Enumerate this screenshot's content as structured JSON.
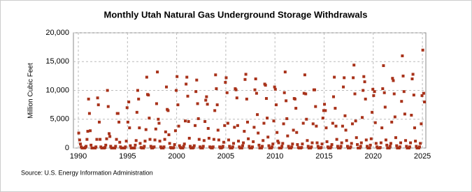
{
  "chart_data": {
    "type": "scatter",
    "title": "Monthly Utah Natural  Gas Underground Storage Withdrawals",
    "y_label": "Million Cubic Feet",
    "source": "Source: U.S. Energy Information Administration",
    "color": "#a8321a",
    "grid": true,
    "xlim": [
      1989.5,
      2025.35
    ],
    "xticks": [
      1990,
      1995,
      2000,
      2005,
      2010,
      2015,
      2020,
      2025
    ],
    "ylim": [
      0,
      20000
    ],
    "yticks": [
      0,
      {
        "value": 5000,
        "label": "5,000"
      },
      {
        "value": 10000,
        "label": "10,000"
      },
      {
        "value": 15000,
        "label": "15,000"
      },
      {
        "value": 20000,
        "label": "20,000"
      }
    ],
    "x": [
      1990.04,
      1990.13,
      1990.21,
      1990.29,
      1990.38,
      1990.46,
      1990.54,
      1990.63,
      1990.71,
      1990.79,
      1990.88,
      1990.96,
      1991.04,
      1991.13,
      1991.21,
      1991.29,
      1991.38,
      1991.46,
      1991.54,
      1991.63,
      1991.71,
      1991.79,
      1991.88,
      1991.96,
      1992.04,
      1992.13,
      1992.21,
      1992.29,
      1992.38,
      1992.46,
      1992.54,
      1992.63,
      1992.71,
      1992.79,
      1992.88,
      1992.96,
      1993.04,
      1993.13,
      1993.21,
      1993.29,
      1993.38,
      1993.46,
      1993.54,
      1993.63,
      1993.71,
      1993.79,
      1993.88,
      1993.96,
      1994.04,
      1994.13,
      1994.21,
      1994.29,
      1994.38,
      1994.46,
      1994.54,
      1994.63,
      1994.71,
      1994.79,
      1994.88,
      1994.96,
      1995.04,
      1995.13,
      1995.21,
      1995.29,
      1995.38,
      1995.46,
      1995.54,
      1995.63,
      1995.71,
      1995.79,
      1995.88,
      1995.96,
      1996.04,
      1996.13,
      1996.21,
      1996.29,
      1996.38,
      1996.46,
      1996.54,
      1996.63,
      1996.71,
      1996.79,
      1996.88,
      1996.96,
      1997.04,
      1997.13,
      1997.21,
      1997.29,
      1997.38,
      1997.46,
      1997.54,
      1997.63,
      1997.71,
      1997.79,
      1997.88,
      1997.96,
      1998.04,
      1998.13,
      1998.21,
      1998.29,
      1998.38,
      1998.46,
      1998.54,
      1998.63,
      1998.71,
      1998.79,
      1998.88,
      1998.96,
      1999.04,
      1999.13,
      1999.21,
      1999.29,
      1999.38,
      1999.46,
      1999.54,
      1999.63,
      1999.71,
      1999.79,
      1999.88,
      1999.96,
      2000.04,
      2000.13,
      2000.21,
      2000.29,
      2000.38,
      2000.46,
      2000.54,
      2000.63,
      2000.71,
      2000.79,
      2000.88,
      2000.96,
      2001.04,
      2001.13,
      2001.21,
      2001.29,
      2001.38,
      2001.46,
      2001.54,
      2001.63,
      2001.71,
      2001.79,
      2001.88,
      2001.96,
      2002.04,
      2002.13,
      2002.21,
      2002.29,
      2002.38,
      2002.46,
      2002.54,
      2002.63,
      2002.71,
      2002.79,
      2002.88,
      2002.96,
      2003.04,
      2003.13,
      2003.21,
      2003.29,
      2003.38,
      2003.46,
      2003.54,
      2003.63,
      2003.71,
      2003.79,
      2003.88,
      2003.96,
      2004.04,
      2004.13,
      2004.21,
      2004.29,
      2004.38,
      2004.46,
      2004.54,
      2004.63,
      2004.71,
      2004.79,
      2004.88,
      2004.96,
      2005.04,
      2005.13,
      2005.21,
      2005.29,
      2005.38,
      2005.46,
      2005.54,
      2005.63,
      2005.71,
      2005.79,
      2005.88,
      2005.96,
      2006.04,
      2006.13,
      2006.21,
      2006.29,
      2006.38,
      2006.46,
      2006.54,
      2006.63,
      2006.71,
      2006.79,
      2006.88,
      2006.96,
      2007.04,
      2007.13,
      2007.21,
      2007.29,
      2007.38,
      2007.46,
      2007.54,
      2007.63,
      2007.71,
      2007.79,
      2007.88,
      2007.96,
      2008.04,
      2008.13,
      2008.21,
      2008.29,
      2008.38,
      2008.46,
      2008.54,
      2008.63,
      2008.71,
      2008.79,
      2008.88,
      2008.96,
      2009.04,
      2009.13,
      2009.21,
      2009.29,
      2009.38,
      2009.46,
      2009.54,
      2009.63,
      2009.71,
      2009.79,
      2009.88,
      2009.96,
      2010.04,
      2010.13,
      2010.21,
      2010.29,
      2010.38,
      2010.46,
      2010.54,
      2010.63,
      2010.71,
      2010.79,
      2010.88,
      2010.96,
      2011.04,
      2011.13,
      2011.21,
      2011.29,
      2011.38,
      2011.46,
      2011.54,
      2011.63,
      2011.71,
      2011.79,
      2011.88,
      2011.96,
      2012.04,
      2012.13,
      2012.21,
      2012.29,
      2012.38,
      2012.46,
      2012.54,
      2012.63,
      2012.71,
      2012.79,
      2012.88,
      2012.96,
      2013.04,
      2013.13,
      2013.21,
      2013.29,
      2013.38,
      2013.46,
      2013.54,
      2013.63,
      2013.71,
      2013.79,
      2013.88,
      2013.96,
      2014.04,
      2014.13,
      2014.21,
      2014.29,
      2014.38,
      2014.46,
      2014.54,
      2014.63,
      2014.71,
      2014.79,
      2014.88,
      2014.96,
      2015.04,
      2015.13,
      2015.21,
      2015.29,
      2015.38,
      2015.46,
      2015.54,
      2015.63,
      2015.71,
      2015.79,
      2015.88,
      2015.96,
      2016.04,
      2016.13,
      2016.21,
      2016.29,
      2016.38,
      2016.46,
      2016.54,
      2016.63,
      2016.71,
      2016.79,
      2016.88,
      2016.96,
      2017.04,
      2017.13,
      2017.21,
      2017.29,
      2017.38,
      2017.46,
      2017.54,
      2017.63,
      2017.71,
      2017.79,
      2017.88,
      2017.96,
      2018.04,
      2018.13,
      2018.21,
      2018.29,
      2018.38,
      2018.46,
      2018.54,
      2018.63,
      2018.71,
      2018.79,
      2018.88,
      2018.96,
      2019.04,
      2019.13,
      2019.21,
      2019.29,
      2019.38,
      2019.46,
      2019.54,
      2019.63,
      2019.71,
      2019.79,
      2019.88,
      2019.96,
      2020.04,
      2020.13,
      2020.21,
      2020.29,
      2020.38,
      2020.46,
      2020.54,
      2020.63,
      2020.71,
      2020.79,
      2020.88,
      2020.96,
      2021.04,
      2021.13,
      2021.21,
      2021.29,
      2021.38,
      2021.46,
      2021.54,
      2021.63,
      2021.71,
      2021.79,
      2021.88,
      2021.96,
      2022.04,
      2022.13,
      2022.21,
      2022.29,
      2022.38,
      2022.46,
      2022.54,
      2022.63,
      2022.71,
      2022.79,
      2022.88,
      2022.96,
      2023.04,
      2023.13,
      2023.21,
      2023.29,
      2023.38,
      2023.46,
      2023.54,
      2023.63,
      2023.71,
      2023.79,
      2023.88,
      2023.96,
      2024.04,
      2024.13,
      2024.21,
      2024.29,
      2024.38,
      2024.46,
      2024.54,
      2024.63,
      2024.71,
      2024.79,
      2024.88,
      2024.96,
      2025.04,
      2025.13,
      2025.21
    ],
    "values": [
      2600,
      1400,
      700,
      200,
      0,
      0,
      0,
      0,
      100,
      300,
      1500,
      2900,
      8500,
      6000,
      3000,
      500,
      0,
      0,
      0,
      0,
      0,
      200,
      1500,
      8700,
      7500,
      4500,
      1500,
      200,
      0,
      0,
      0,
      0,
      100,
      500,
      1600,
      10000,
      7200,
      2500,
      2000,
      300,
      0,
      0,
      0,
      0,
      0,
      300,
      1500,
      6000,
      6000,
      4500,
      1000,
      200,
      0,
      0,
      0,
      0,
      0,
      200,
      1200,
      7000,
      4500,
      8000,
      3500,
      400,
      0,
      0,
      0,
      0,
      0,
      500,
      1300,
      6200,
      10000,
      8500,
      3500,
      800,
      100,
      0,
      0,
      0,
      300,
      1200,
      3200,
      12300,
      9300,
      9200,
      5200,
      1500,
      300,
      0,
      0,
      100,
      200,
      1400,
      3300,
      7700,
      13200,
      5000,
      4300,
      1200,
      200,
      0,
      0,
      0,
      200,
      1500,
      2800,
      10600,
      6700,
      6500,
      2300,
      800,
      100,
      0,
      0,
      0,
      100,
      600,
      3000,
      10000,
      12400,
      7500,
      3800,
      400,
      100,
      0,
      0,
      0,
      300,
      700,
      4700,
      11100,
      12300,
      9000,
      4600,
      1700,
      300,
      0,
      0,
      0,
      100,
      400,
      3900,
      9800,
      11800,
      7700,
      5100,
      1500,
      200,
      0,
      0,
      0,
      300,
      1300,
      4600,
      8300,
      8900,
      7600,
      3400,
      1700,
      200,
      100,
      0,
      0,
      200,
      1500,
      6500,
      12700,
      10300,
      7500,
      3100,
      1400,
      200,
      0,
      0,
      100,
      300,
      1000,
      3900,
      11400,
      12200,
      9600,
      4300,
      1400,
      300,
      0,
      0,
      0,
      200,
      800,
      3600,
      10300,
      10100,
      8700,
      3900,
      1200,
      200,
      0,
      0,
      0,
      400,
      900,
      2900,
      11900,
      12800,
      8500,
      4500,
      1600,
      300,
      0,
      0,
      0,
      200,
      1100,
      3600,
      10100,
      12000,
      9500,
      5800,
      2600,
      500,
      0,
      0,
      0,
      300,
      1300,
      4300,
      11100,
      10900,
      8600,
      5200,
      1900,
      400,
      0,
      0,
      0,
      200,
      700,
      4700,
      10600,
      10200,
      7500,
      2700,
      1200,
      900,
      0,
      0,
      0,
      300,
      800,
      4200,
      9600,
      13200,
      8200,
      5100,
      2100,
      300,
      0,
      0,
      0,
      200,
      700,
      3100,
      8600,
      8500,
      6900,
      2700,
      600,
      100,
      0,
      0,
      0,
      100,
      700,
      4300,
      9500,
      12700,
      9400,
      5000,
      1300,
      300,
      0,
      0,
      0,
      200,
      900,
      4200,
      10100,
      10100,
      7200,
      3800,
      900,
      300,
      0,
      0,
      0,
      100,
      700,
      5200,
      6500,
      7600,
      6500,
      3500,
      1100,
      200,
      0,
      0,
      0,
      200,
      600,
      4300,
      8900,
      12300,
      6900,
      3800,
      1500,
      300,
      0,
      0,
      0,
      300,
      900,
      3800,
      10600,
      12200,
      5600,
      3100,
      1300,
      300,
      0,
      0,
      0,
      200,
      800,
      4200,
      12200,
      14400,
      9400,
      4700,
      1800,
      600,
      0,
      0,
      0,
      300,
      900,
      5300,
      10000,
      12400,
      11500,
      8500,
      1400,
      300,
      0,
      0,
      0,
      500,
      1600,
      6200,
      10200,
      9100,
      9800,
      4400,
      800,
      200,
      0,
      0,
      0,
      100,
      900,
      3500,
      10300,
      14300,
      9600,
      7100,
      1400,
      500,
      0,
      0,
      0,
      300,
      800,
      4500,
      12100,
      11700,
      9400,
      5400,
      1800,
      400,
      0,
      0,
      0,
      200,
      900,
      8100,
      16000,
      12500,
      9800,
      5900,
      1300,
      300,
      0,
      0,
      0,
      200,
      900,
      5700,
      12000,
      12800,
      9200,
      3500,
      1200,
      300,
      0,
      0,
      0,
      200,
      800,
      4200,
      9100,
      17000,
      9500,
      8000
    ]
  }
}
